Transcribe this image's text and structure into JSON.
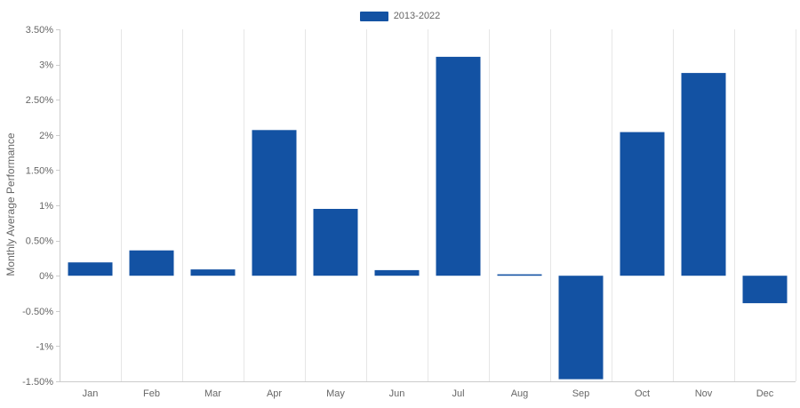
{
  "chart_data": {
    "type": "bar",
    "categories": [
      "Jan",
      "Feb",
      "Mar",
      "Apr",
      "May",
      "Jun",
      "Jul",
      "Aug",
      "Sep",
      "Oct",
      "Nov",
      "Dec"
    ],
    "series": [
      {
        "name": "2013-2022",
        "values": [
          0.19,
          0.36,
          0.09,
          2.07,
          0.95,
          0.08,
          3.11,
          0.02,
          -1.47,
          2.04,
          2.88,
          -0.39
        ]
      }
    ],
    "ylabel": "Monthly Average Performance",
    "xlabel": "",
    "ylim": [
      -1.5,
      3.5
    ],
    "yticks": [
      {
        "value": 3.5,
        "label": "3.50%"
      },
      {
        "value": 3.0,
        "label": "3%"
      },
      {
        "value": 2.5,
        "label": "2.50%"
      },
      {
        "value": 2.0,
        "label": "2%"
      },
      {
        "value": 1.5,
        "label": "1.50%"
      },
      {
        "value": 1.0,
        "label": "1%"
      },
      {
        "value": 0.5,
        "label": "0.50%"
      },
      {
        "value": 0.0,
        "label": "0%"
      },
      {
        "value": -0.5,
        "label": "-0.50%"
      },
      {
        "value": -1.0,
        "label": "-1%"
      },
      {
        "value": -1.5,
        "label": "-1.50%"
      }
    ],
    "grid": "vertical",
    "legend_position": "top-center",
    "colors": {
      "bar": "#1352a3",
      "grid": "#e6e6e6",
      "axis": "#cccccc",
      "text": "#666666"
    }
  }
}
